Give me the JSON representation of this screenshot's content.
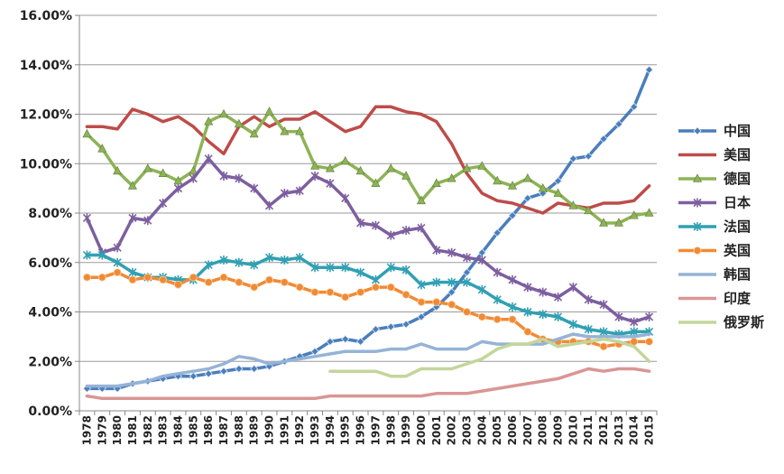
{
  "chart_data": {
    "type": "line",
    "ylim": [
      0,
      16
    ],
    "y_ticks": [
      "0.00%",
      "2.00%",
      "4.00%",
      "6.00%",
      "8.00%",
      "10.00%",
      "12.00%",
      "14.00%",
      "16.00%"
    ],
    "grid": "horizontal",
    "legend_position": "right",
    "categories": [
      "1978",
      "1979",
      "1980",
      "1981",
      "1982",
      "1983",
      "1984",
      "1985",
      "1986",
      "1987",
      "1988",
      "1989",
      "1990",
      "1991",
      "1992",
      "1993",
      "1994",
      "1995",
      "1996",
      "1997",
      "1998",
      "1999",
      "2000",
      "2001",
      "2002",
      "2003",
      "2004",
      "2005",
      "2006",
      "2007",
      "2008",
      "2009",
      "2010",
      "2011",
      "2012",
      "2013",
      "2014",
      "2015"
    ],
    "series": [
      {
        "name": "中国",
        "color": "#4a7ebb",
        "marker": "diamond",
        "values": [
          0.9,
          0.9,
          0.9,
          1.1,
          1.2,
          1.3,
          1.4,
          1.4,
          1.5,
          1.6,
          1.7,
          1.7,
          1.8,
          2.0,
          2.2,
          2.4,
          2.8,
          2.9,
          2.8,
          3.3,
          3.4,
          3.5,
          3.8,
          4.2,
          4.8,
          5.6,
          6.4,
          7.2,
          7.9,
          8.6,
          8.8,
          9.3,
          10.2,
          10.3,
          11.0,
          11.6,
          12.3,
          13.8
        ]
      },
      {
        "name": "美国",
        "color": "#be4b48",
        "marker": "none",
        "values": [
          11.5,
          11.5,
          11.4,
          12.2,
          12.0,
          11.7,
          11.9,
          11.5,
          10.9,
          10.4,
          11.5,
          11.9,
          11.5,
          11.8,
          11.8,
          12.1,
          11.7,
          11.3,
          11.5,
          12.3,
          12.3,
          12.1,
          12.0,
          11.7,
          10.8,
          9.6,
          8.8,
          8.5,
          8.4,
          8.2,
          8.0,
          8.4,
          8.3,
          8.2,
          8.4,
          8.4,
          8.5,
          9.1
        ]
      },
      {
        "name": "德国",
        "color": "#8db356",
        "marker": "triangle",
        "values": [
          11.2,
          10.6,
          9.7,
          9.1,
          9.8,
          9.6,
          9.3,
          9.7,
          11.7,
          12.0,
          11.6,
          11.2,
          12.1,
          11.3,
          11.3,
          9.9,
          9.8,
          10.1,
          9.7,
          9.2,
          9.8,
          9.5,
          8.5,
          9.2,
          9.4,
          9.8,
          9.9,
          9.3,
          9.1,
          9.4,
          9.0,
          8.8,
          8.3,
          8.1,
          7.6,
          7.6,
          7.9,
          8.0
        ]
      },
      {
        "name": "日本",
        "color": "#7d5fa0",
        "marker": "star",
        "values": [
          7.8,
          6.4,
          6.6,
          7.8,
          7.7,
          8.4,
          9.0,
          9.4,
          10.2,
          9.5,
          9.4,
          9.0,
          8.3,
          8.8,
          8.9,
          9.5,
          9.2,
          8.6,
          7.6,
          7.5,
          7.1,
          7.3,
          7.4,
          6.5,
          6.4,
          6.2,
          6.1,
          5.6,
          5.3,
          5.0,
          4.8,
          4.6,
          5.0,
          4.5,
          4.3,
          3.8,
          3.6,
          3.8
        ]
      },
      {
        "name": "法国",
        "color": "#31a0b3",
        "marker": "star",
        "values": [
          6.3,
          6.3,
          6.0,
          5.6,
          5.4,
          5.4,
          5.3,
          5.3,
          5.9,
          6.1,
          6.0,
          5.9,
          6.2,
          6.1,
          6.2,
          5.8,
          5.8,
          5.8,
          5.6,
          5.3,
          5.8,
          5.7,
          5.1,
          5.2,
          5.2,
          5.2,
          4.9,
          4.5,
          4.2,
          4.0,
          3.9,
          3.8,
          3.5,
          3.3,
          3.2,
          3.1,
          3.2,
          3.2
        ]
      },
      {
        "name": "英国",
        "color": "#f18a35",
        "marker": "circle",
        "values": [
          5.4,
          5.4,
          5.6,
          5.3,
          5.4,
          5.3,
          5.1,
          5.4,
          5.2,
          5.4,
          5.2,
          5.0,
          5.3,
          5.2,
          5.0,
          4.8,
          4.8,
          4.6,
          4.8,
          5.0,
          5.0,
          4.7,
          4.4,
          4.4,
          4.3,
          4.0,
          3.8,
          3.7,
          3.7,
          3.2,
          2.9,
          2.8,
          2.8,
          2.8,
          2.6,
          2.7,
          2.8,
          2.8
        ]
      },
      {
        "name": "韩国",
        "color": "#95b3d7",
        "marker": "none",
        "values": [
          1.0,
          1.0,
          1.0,
          1.1,
          1.2,
          1.4,
          1.5,
          1.6,
          1.7,
          1.9,
          2.2,
          2.1,
          1.9,
          2.0,
          2.1,
          2.2,
          2.3,
          2.4,
          2.4,
          2.4,
          2.5,
          2.5,
          2.7,
          2.5,
          2.5,
          2.5,
          2.8,
          2.7,
          2.7,
          2.7,
          2.7,
          2.9,
          3.1,
          3.0,
          3.0,
          3.0,
          3.0,
          3.1
        ]
      },
      {
        "name": "印度",
        "color": "#d99694",
        "marker": "none",
        "values": [
          0.6,
          0.5,
          0.5,
          0.5,
          0.5,
          0.5,
          0.5,
          0.5,
          0.5,
          0.5,
          0.5,
          0.5,
          0.5,
          0.5,
          0.5,
          0.5,
          0.6,
          0.6,
          0.6,
          0.6,
          0.6,
          0.6,
          0.6,
          0.7,
          0.7,
          0.7,
          0.8,
          0.9,
          1.0,
          1.1,
          1.2,
          1.3,
          1.5,
          1.7,
          1.6,
          1.7,
          1.7,
          1.6
        ]
      },
      {
        "name": "俄罗斯",
        "color": "#c3d69b",
        "marker": "none",
        "values": [
          null,
          null,
          null,
          null,
          null,
          null,
          null,
          null,
          null,
          null,
          null,
          null,
          null,
          null,
          null,
          null,
          1.6,
          1.6,
          1.6,
          1.6,
          1.4,
          1.4,
          1.7,
          1.7,
          1.7,
          1.9,
          2.1,
          2.5,
          2.7,
          2.7,
          2.9,
          2.6,
          2.7,
          2.8,
          2.9,
          2.8,
          2.6,
          2.0
        ]
      }
    ]
  }
}
